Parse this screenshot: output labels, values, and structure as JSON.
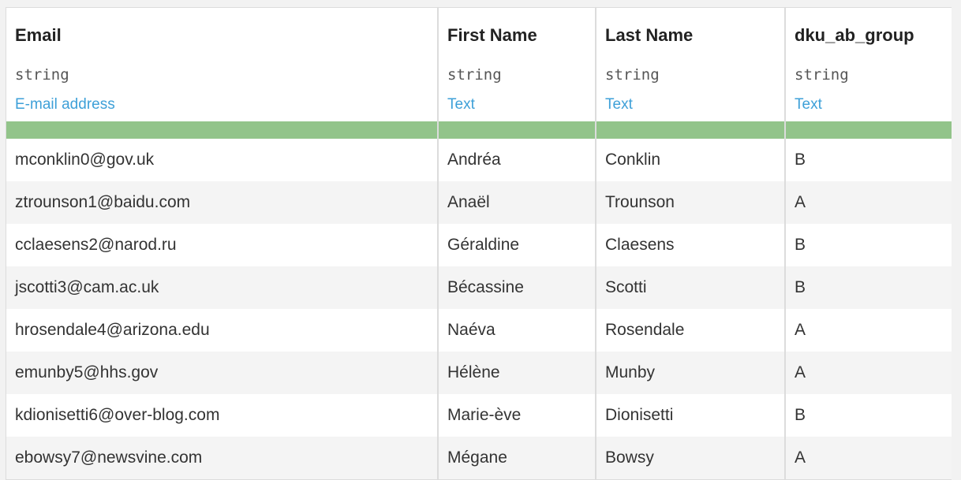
{
  "columns": [
    {
      "name": "Email",
      "type": "string",
      "meaning": "E-mail address"
    },
    {
      "name": "First Name",
      "type": "string",
      "meaning": "Text"
    },
    {
      "name": "Last Name",
      "type": "string",
      "meaning": "Text"
    },
    {
      "name": "dku_ab_group",
      "type": "string",
      "meaning": "Text"
    }
  ],
  "quality_color": "#92c48a",
  "rows": [
    [
      "mconklin0@gov.uk",
      "Andréa",
      "Conklin",
      "B"
    ],
    [
      "ztrounson1@baidu.com",
      "Anaël",
      "Trounson",
      "A"
    ],
    [
      "cclaesens2@narod.ru",
      "Géraldine",
      "Claesens",
      "B"
    ],
    [
      "jscotti3@cam.ac.uk",
      "Bécassine",
      "Scotti",
      "B"
    ],
    [
      "hrosendale4@arizona.edu",
      "Naéva",
      "Rosendale",
      "A"
    ],
    [
      "emunby5@hhs.gov",
      "Hélène",
      "Munby",
      "A"
    ],
    [
      "kdionisetti6@over-blog.com",
      "Marie-ève",
      "Dionisetti",
      "B"
    ],
    [
      "ebowsy7@newsvine.com",
      "Mégane",
      "Bowsy",
      "A"
    ]
  ]
}
